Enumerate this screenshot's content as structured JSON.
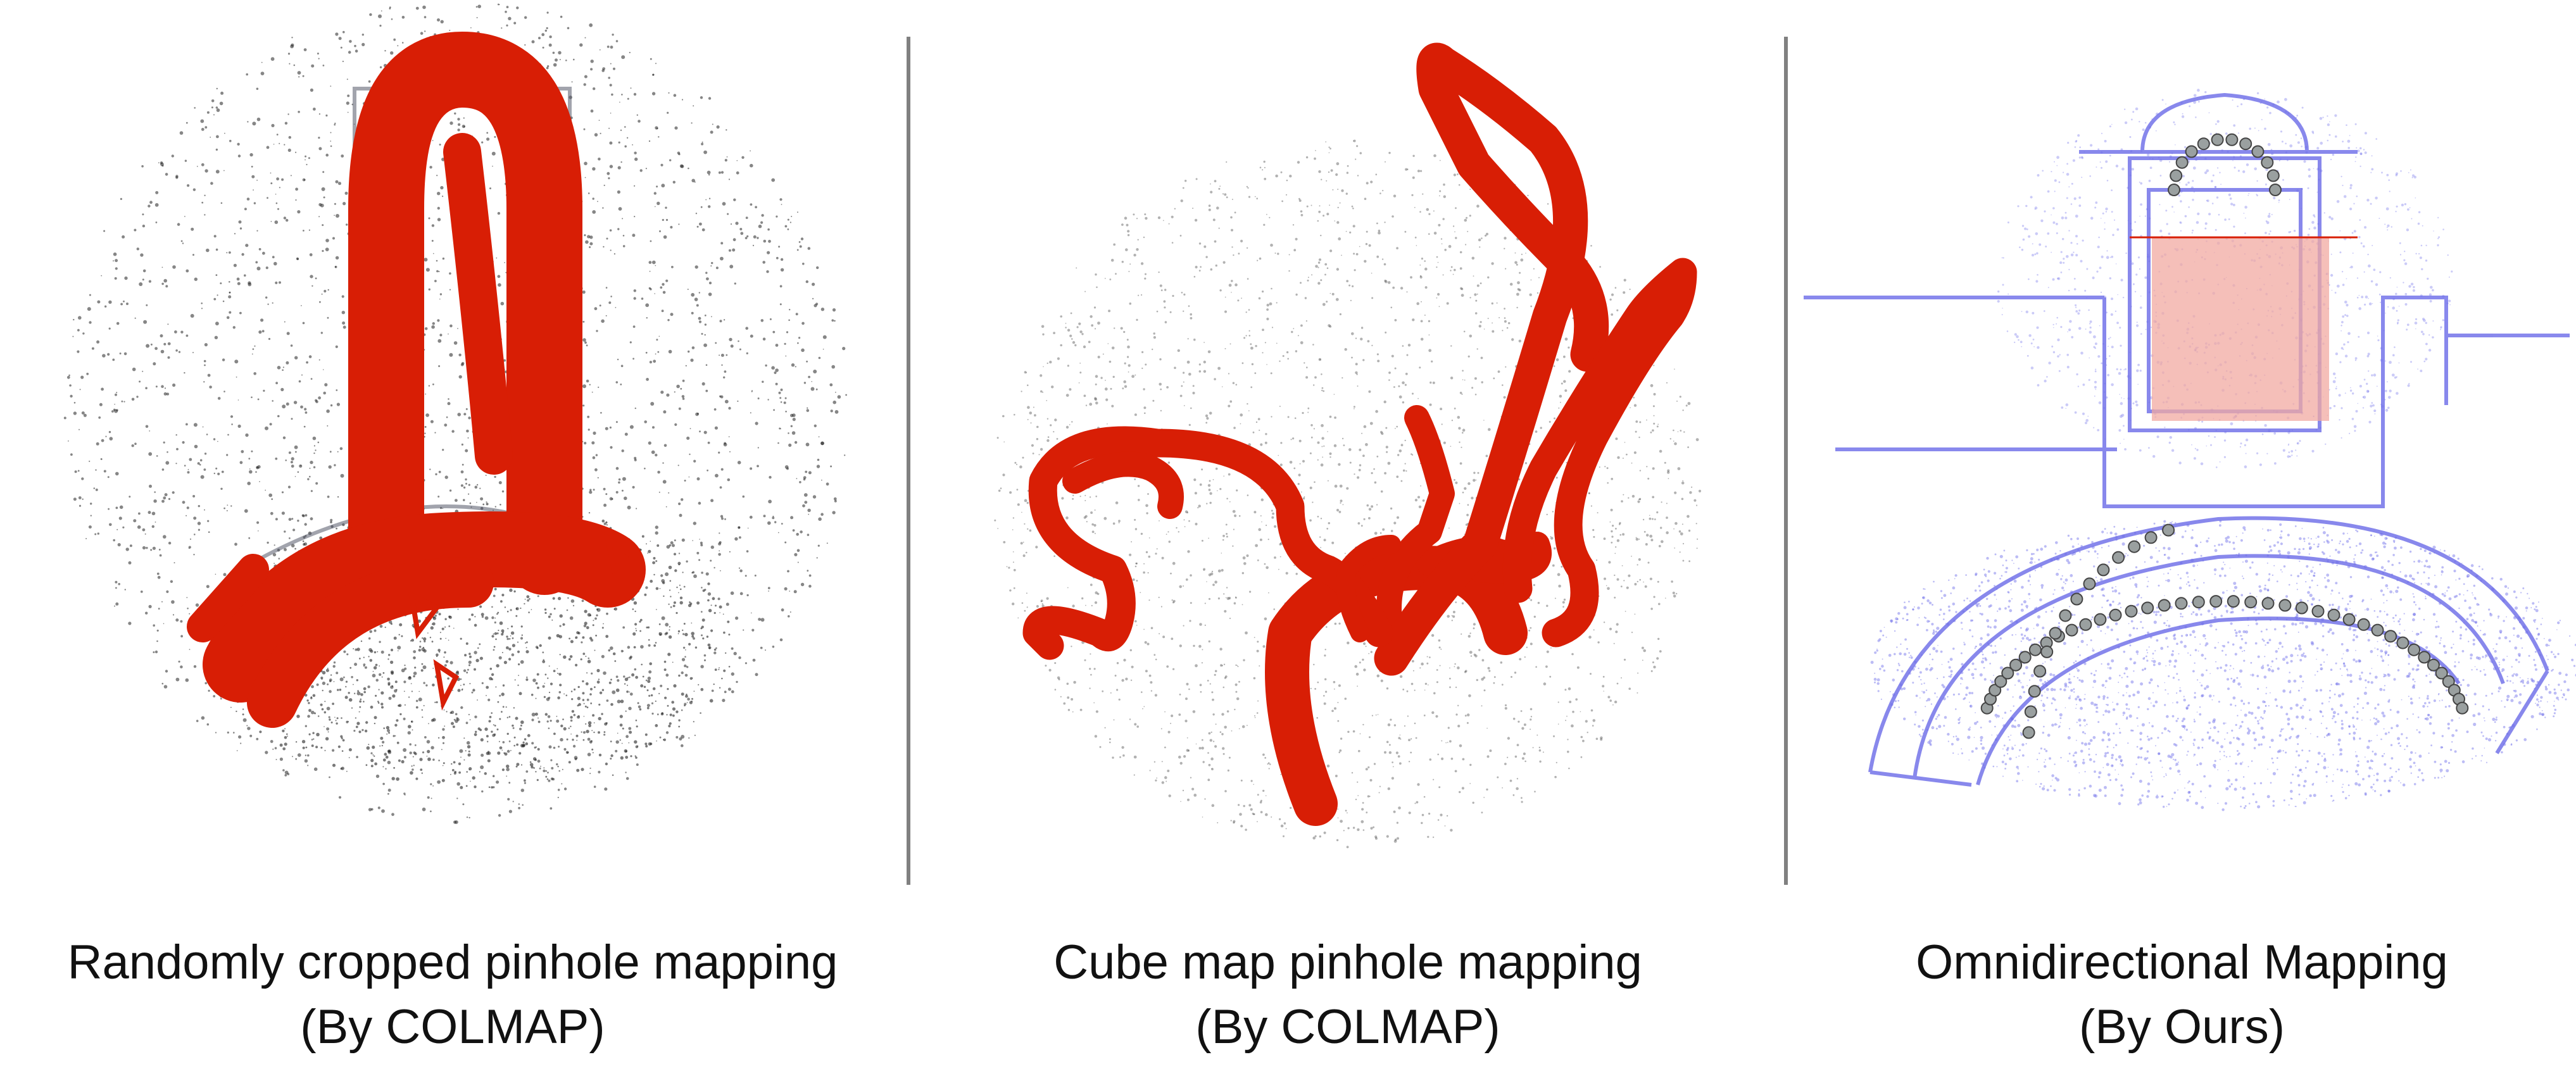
{
  "figure": {
    "panels": [
      {
        "caption_line1": "Randomly cropped pinhole mapping",
        "caption_line2": "(By COLMAP)"
      },
      {
        "caption_line1": "Cube map pinhole mapping",
        "caption_line2": "(By COLMAP)"
      },
      {
        "caption_line1": "Omnidirectional Mapping",
        "caption_line2": "(By Ours)"
      }
    ],
    "colors": {
      "camera_trajectory": "#d81e05",
      "colmap_points": "#222222",
      "ours_points": "#6b6be8",
      "ours_camera_markers": "#9aa0a0",
      "divider": "#808080"
    }
  }
}
